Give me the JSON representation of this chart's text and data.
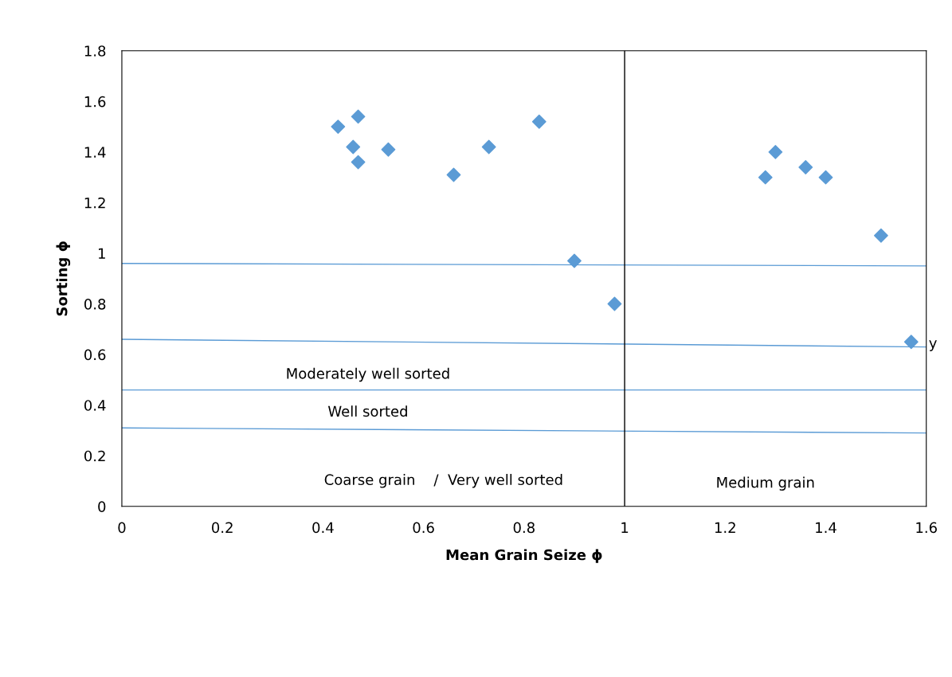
{
  "chart_data": {
    "type": "scatter",
    "xlabel": "Mean Grain Seize ϕ",
    "ylabel": "Sorting ϕ",
    "xlim": [
      0,
      1.6
    ],
    "ylim": [
      0,
      1.8
    ],
    "xticks": [
      0,
      0.2,
      0.4,
      0.6,
      0.8,
      1,
      1.2,
      1.4,
      1.6
    ],
    "yticks": [
      0,
      0.2,
      0.4,
      0.6,
      0.8,
      1,
      1.2,
      1.4,
      1.6,
      1.8
    ],
    "grid": false,
    "legend": false,
    "series": [
      {
        "marker": "diamond",
        "color": "#5b9bd5",
        "x": [
          0.43,
          0.47,
          0.46,
          0.47,
          0.53,
          0.66,
          0.73,
          0.83,
          0.9,
          0.98,
          1.28,
          1.3,
          1.36,
          1.4,
          1.51,
          1.57
        ],
        "values": [
          1.5,
          1.54,
          1.42,
          1.36,
          1.41,
          1.31,
          1.42,
          1.52,
          0.97,
          0.8,
          1.3,
          1.4,
          1.34,
          1.3,
          1.07,
          0.65
        ]
      },
      {
        "type": "line",
        "color": "#5b9bd5",
        "x": [
          0,
          1.6
        ],
        "values": [
          0.96,
          0.95
        ]
      },
      {
        "type": "line",
        "color": "#5b9bd5",
        "x": [
          0,
          1.6
        ],
        "values": [
          0.66,
          0.63
        ]
      },
      {
        "type": "line",
        "color": "#5b9bd5",
        "x": [
          0,
          1.6
        ],
        "values": [
          0.46,
          0.46
        ]
      },
      {
        "type": "line",
        "color": "#5b9bd5",
        "x": [
          0,
          1.6
        ],
        "values": [
          0.31,
          0.29
        ]
      }
    ],
    "ref_lines": [
      {
        "axis": "x",
        "value": 1,
        "color": "#000000"
      }
    ],
    "annotations": [
      "Moderately well sorted",
      "Well sorted",
      "Coarse grain    /  Very well sorted",
      "Medium grain",
      "y"
    ]
  }
}
